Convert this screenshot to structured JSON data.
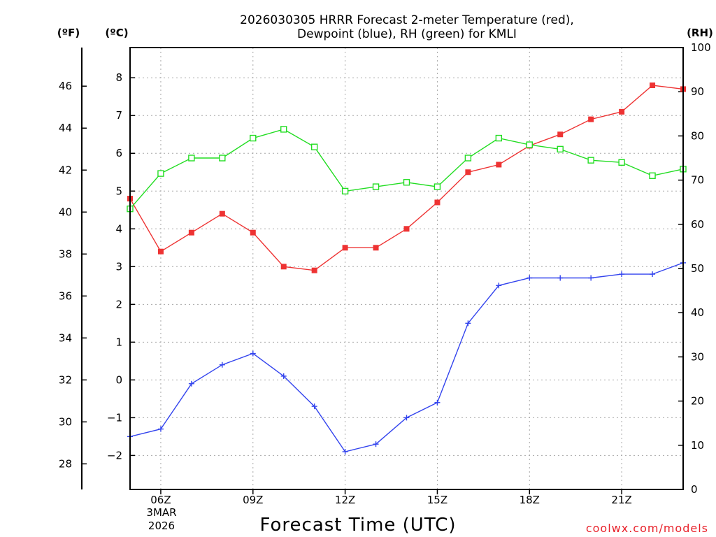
{
  "chart_data": {
    "type": "line",
    "title_line1": "2026030305 HRRR Forecast 2-meter Temperature (red),",
    "title_line2": "Dewpoint (blue), RH (green) for KMLI",
    "xlabel": "Forecast Time (UTC)",
    "credit": "coolwx.com/models",
    "units": {
      "f": "(ºF)",
      "c": "(ºC)",
      "rh": "(RH)"
    },
    "x_date_label": {
      "day": "3MAR",
      "year": "2026"
    },
    "x_range_hours": [
      5,
      23
    ],
    "x_ticks": [
      {
        "hour": 6,
        "label": "06Z"
      },
      {
        "hour": 9,
        "label": "09Z"
      },
      {
        "hour": 12,
        "label": "12Z"
      },
      {
        "hour": 15,
        "label": "15Z"
      },
      {
        "hour": 18,
        "label": "18Z"
      },
      {
        "hour": 21,
        "label": "21Z"
      }
    ],
    "c_axis": {
      "range": [
        -2.9,
        8.8
      ],
      "ticks": [
        -2,
        -1,
        0,
        1,
        2,
        3,
        4,
        5,
        6,
        7,
        8
      ],
      "labels": [
        "−2",
        "−1",
        "0",
        "1",
        "2",
        "3",
        "4",
        "5",
        "6",
        "7",
        "8"
      ]
    },
    "f_axis": {
      "range": [
        26.78,
        47.84
      ],
      "ticks": [
        28,
        30,
        32,
        34,
        36,
        38,
        40,
        42,
        44,
        46
      ],
      "labels": [
        "28",
        "30",
        "32",
        "34",
        "36",
        "38",
        "40",
        "42",
        "44",
        "46"
      ]
    },
    "rh_axis": {
      "range": [
        0,
        100
      ],
      "ticks": [
        0,
        10,
        20,
        30,
        40,
        50,
        60,
        70,
        80,
        90,
        100
      ],
      "labels": [
        "0",
        "10",
        "20",
        "30",
        "40",
        "50",
        "60",
        "70",
        "80",
        "90",
        "100"
      ]
    },
    "hours": [
      5,
      6,
      7,
      8,
      9,
      10,
      11,
      12,
      13,
      14,
      15,
      16,
      17,
      18,
      19,
      20,
      21,
      22,
      23
    ],
    "series": [
      {
        "name": "2-meter Temperature",
        "unit": "C",
        "color": "#ee3333",
        "marker": "filled-square",
        "values": [
          4.8,
          3.4,
          3.9,
          4.4,
          3.9,
          3.0,
          2.9,
          3.5,
          3.5,
          4.0,
          4.7,
          5.5,
          5.7,
          6.2,
          6.5,
          6.9,
          7.1,
          7.8,
          7.7
        ]
      },
      {
        "name": "Dewpoint",
        "unit": "C",
        "color": "#3344ee",
        "marker": "plus",
        "values": [
          -1.5,
          -1.3,
          -0.1,
          0.4,
          0.7,
          0.1,
          -0.7,
          -1.9,
          -1.7,
          -1.0,
          -0.6,
          1.5,
          2.5,
          2.7,
          2.7,
          2.7,
          2.8,
          2.8,
          3.1
        ]
      },
      {
        "name": "RH",
        "unit": "%",
        "color": "#22dd22",
        "marker": "open-square",
        "values": [
          63.5,
          71.5,
          75.0,
          75.0,
          79.5,
          81.5,
          77.5,
          67.5,
          68.5,
          69.5,
          68.5,
          75.0,
          79.5,
          78.0,
          77.0,
          74.5,
          74.0,
          71.0,
          72.5
        ]
      }
    ]
  }
}
